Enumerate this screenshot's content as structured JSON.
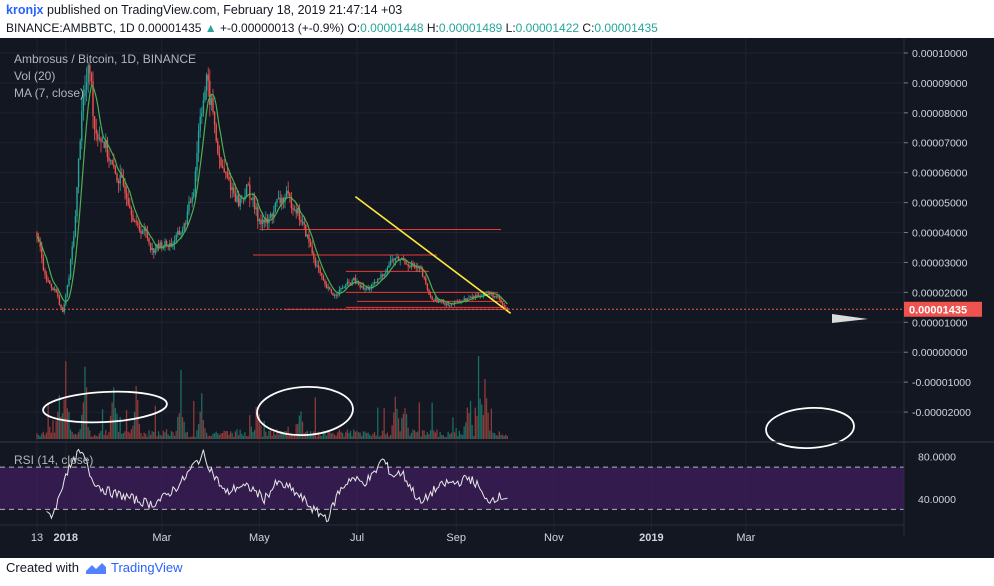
{
  "header": {
    "author": "kronjx",
    "published_text": "published on TradingView.com, February 18, 2019 21:47:14 +03",
    "symbol": "BINANCE:AMBBTC, 1D",
    "last_price": "0.00001435",
    "change_arrow": "▲",
    "change": "+-0.00000013 (+-0.9%)",
    "o_label": "O:",
    "o_value": "0.00001448",
    "h_label": "H:",
    "h_value": "0.00001489",
    "l_label": "L:",
    "l_value": "0.00001422",
    "c_label": "C:",
    "c_value": "0.00001435"
  },
  "legend": {
    "title": "Ambrosus / Bitcoin, 1D, BINANCE",
    "vol": "Vol (20)",
    "ma": "MA (7, close)",
    "rsi": "RSI (14, close)"
  },
  "footer": {
    "created_with": "Created with",
    "brand": "TradingView"
  },
  "colors": {
    "background": "#131722",
    "up": "#26a69a",
    "down": "#ef5350",
    "ma": "#4caf50",
    "trendline": "#ffeb3b",
    "hline": "#e53935",
    "rsi_band": "#3f1f5c",
    "price_tag": "#ef5350"
  },
  "chart_data": {
    "type": "candlestick",
    "title": "Ambrosus / Bitcoin, 1D, BINANCE",
    "ylim": [
      -3e-05,
      0.000105
    ],
    "y_ticks": [
      "0.00010000",
      "0.00009000",
      "0.00008000",
      "0.00007000",
      "0.00006000",
      "0.00005000",
      "0.00004000",
      "0.00003000",
      "0.00002000",
      "0.00001000",
      "0.00000000",
      "-0.00001000",
      "-0.00002000"
    ],
    "y_tick_values": [
      0.0001,
      9e-05,
      8e-05,
      7e-05,
      6e-05,
      5e-05,
      4e-05,
      3e-05,
      2e-05,
      1e-05,
      0,
      -1e-05,
      -2e-05
    ],
    "x_ticks": [
      "13",
      "2018",
      "Mar",
      "May",
      "Jul",
      "Sep",
      "Nov",
      "2019",
      "Mar"
    ],
    "x_tick_days": [
      0,
      18,
      78,
      139,
      200,
      262,
      323,
      384,
      443
    ],
    "last_price": 1.435e-05,
    "price_anchors": [
      [
        0,
        4e-05
      ],
      [
        5,
        2.5e-05
      ],
      [
        12,
        2e-05
      ],
      [
        16,
        1.3e-05
      ],
      [
        20,
        2.5e-05
      ],
      [
        24,
        4.5e-05
      ],
      [
        28,
        8.2e-05
      ],
      [
        33,
        9.5e-05
      ],
      [
        36,
        7.5e-05
      ],
      [
        42,
        7e-05
      ],
      [
        48,
        6e-05
      ],
      [
        55,
        5.5e-05
      ],
      [
        62,
        4.2e-05
      ],
      [
        68,
        4e-05
      ],
      [
        72,
        3.4e-05
      ],
      [
        78,
        3.6e-05
      ],
      [
        84,
        3.6e-05
      ],
      [
        92,
        4.2e-05
      ],
      [
        98,
        5.5e-05
      ],
      [
        102,
        8e-05
      ],
      [
        106,
        9e-05
      ],
      [
        110,
        8e-05
      ],
      [
        114,
        6.3e-05
      ],
      [
        120,
        5.7e-05
      ],
      [
        126,
        5e-05
      ],
      [
        132,
        5.5e-05
      ],
      [
        138,
        4.5e-05
      ],
      [
        144,
        4.3e-05
      ],
      [
        150,
        5e-05
      ],
      [
        156,
        5.2e-05
      ],
      [
        162,
        4.8e-05
      ],
      [
        168,
        4e-05
      ],
      [
        174,
        3e-05
      ],
      [
        180,
        2.2e-05
      ],
      [
        186,
        1.9e-05
      ],
      [
        192,
        2.2e-05
      ],
      [
        198,
        2.4e-05
      ],
      [
        204,
        2.1e-05
      ],
      [
        210,
        2.2e-05
      ],
      [
        216,
        2.6e-05
      ],
      [
        222,
        3.1e-05
      ],
      [
        228,
        3.1e-05
      ],
      [
        234,
        2.9e-05
      ],
      [
        240,
        2.7e-05
      ],
      [
        246,
        1.8e-05
      ],
      [
        252,
        1.7e-05
      ],
      [
        258,
        1.6e-05
      ],
      [
        264,
        1.7e-05
      ],
      [
        270,
        1.8e-05
      ],
      [
        276,
        1.9e-05
      ],
      [
        282,
        2e-05
      ],
      [
        288,
        1.8e-05
      ],
      [
        292,
        1.5e-05
      ],
      [
        294,
        1.43e-05
      ]
    ],
    "volume_spikes": [
      [
        14,
        0.6
      ],
      [
        18,
        0.9
      ],
      [
        30,
        0.9
      ],
      [
        48,
        0.6
      ],
      [
        62,
        0.6
      ],
      [
        90,
        0.7
      ],
      [
        103,
        0.55
      ],
      [
        138,
        0.5
      ],
      [
        164,
        0.5
      ],
      [
        224,
        0.5
      ],
      [
        230,
        0.5
      ],
      [
        270,
        0.6
      ],
      [
        276,
        0.95
      ],
      [
        280,
        0.7
      ]
    ],
    "rsi": {
      "levels": [
        70,
        30
      ],
      "y_ticks": [
        "80.0000",
        "40.0000"
      ],
      "y_tick_values": [
        80,
        40
      ],
      "anchors": [
        [
          0,
          28
        ],
        [
          6,
          24
        ],
        [
          10,
          26
        ],
        [
          14,
          42
        ],
        [
          18,
          65
        ],
        [
          22,
          72
        ],
        [
          26,
          84
        ],
        [
          30,
          78
        ],
        [
          34,
          60
        ],
        [
          40,
          50
        ],
        [
          48,
          45
        ],
        [
          56,
          42
        ],
        [
          64,
          38
        ],
        [
          72,
          35
        ],
        [
          80,
          42
        ],
        [
          90,
          55
        ],
        [
          98,
          72
        ],
        [
          104,
          82
        ],
        [
          110,
          64
        ],
        [
          118,
          45
        ],
        [
          126,
          52
        ],
        [
          134,
          50
        ],
        [
          142,
          40
        ],
        [
          150,
          55
        ],
        [
          158,
          50
        ],
        [
          166,
          40
        ],
        [
          174,
          28
        ],
        [
          182,
          22
        ],
        [
          188,
          45
        ],
        [
          196,
          60
        ],
        [
          204,
          55
        ],
        [
          210,
          62
        ],
        [
          216,
          78
        ],
        [
          222,
          62
        ],
        [
          228,
          65
        ],
        [
          234,
          50
        ],
        [
          240,
          35
        ],
        [
          248,
          48
        ],
        [
          256,
          55
        ],
        [
          262,
          55
        ],
        [
          270,
          60
        ],
        [
          276,
          52
        ],
        [
          280,
          38
        ],
        [
          288,
          42
        ]
      ]
    },
    "horizontal_levels": [
      4.1e-05,
      3.25e-05,
      2.7e-05,
      2e-05,
      1.7e-05,
      1.5e-05,
      1.43e-05
    ],
    "trendline": {
      "from": [
        199,
        5.2e-05
      ],
      "to": [
        296,
        1.3e-05
      ]
    },
    "annotations": "hand-drawn ellipses around volume clusters; white arrow marker near last price"
  }
}
